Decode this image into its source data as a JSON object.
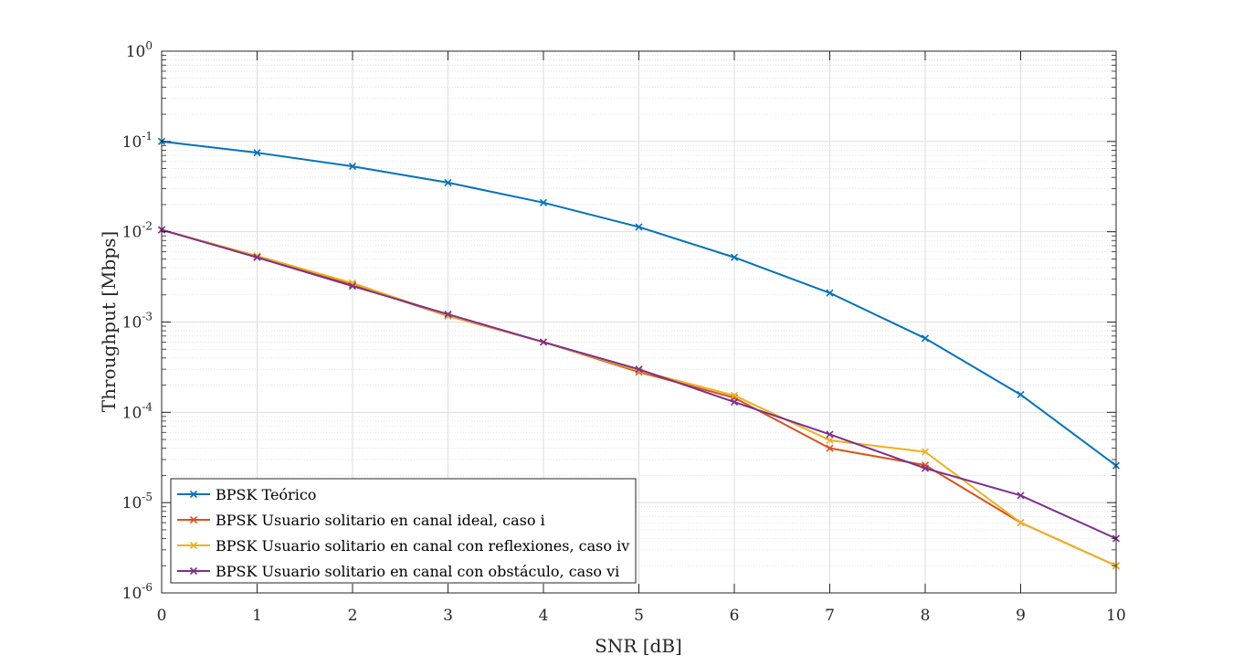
{
  "chart_data": {
    "type": "line",
    "xlabel": "SNR [dB]",
    "ylabel": "Throughput [Mbps]",
    "xlim": [
      0,
      10
    ],
    "ylim": [
      1e-06,
      1
    ],
    "y_scale": "log",
    "grid": true,
    "minor_grid": true,
    "legend_placement": "bottom-left",
    "marker": "x",
    "x": [
      0,
      1,
      2,
      3,
      4,
      5,
      6,
      7,
      8,
      9,
      10
    ],
    "x_ticks": [
      "0",
      "1",
      "2",
      "3",
      "4",
      "5",
      "6",
      "7",
      "8",
      "9",
      "10"
    ],
    "y_ticks": [
      {
        "base": "10",
        "exp": "0"
      },
      {
        "base": "10",
        "exp": "-1"
      },
      {
        "base": "10",
        "exp": "-2"
      },
      {
        "base": "10",
        "exp": "-3"
      },
      {
        "base": "10",
        "exp": "-4"
      },
      {
        "base": "10",
        "exp": "-5"
      },
      {
        "base": "10",
        "exp": "-6"
      }
    ],
    "series": [
      {
        "name": "BPSK Teórico",
        "color": "#0072BD",
        "values": [
          0.1,
          0.075,
          0.053,
          0.035,
          0.021,
          0.0113,
          0.0052,
          0.0021,
          0.00066,
          0.000157,
          2.57e-05
        ]
      },
      {
        "name": "BPSK Usuario solitario en canal ideal, caso i",
        "color": "#D95319",
        "values": [
          0.0105,
          0.0053,
          0.0026,
          0.00117,
          0.0006,
          0.00028,
          0.000145,
          4e-05,
          2.6e-05,
          6e-06,
          2e-06
        ]
      },
      {
        "name": "BPSK Usuario solitario en canal con reflexiones, caso iv",
        "color": "#EDB120",
        "values": [
          0.0105,
          0.0054,
          0.0027,
          0.00118,
          0.0006,
          0.00029,
          0.000154,
          4.9e-05,
          3.65e-05,
          6e-06,
          2e-06
        ]
      },
      {
        "name": "BPSK Usuario solitario en canal con obstáculo, caso vi",
        "color": "#7E2F8E",
        "values": [
          0.0105,
          0.0052,
          0.0025,
          0.00122,
          0.0006,
          0.0003,
          0.00013,
          5.7e-05,
          2.4e-05,
          1.2e-05,
          4e-06
        ]
      }
    ]
  }
}
